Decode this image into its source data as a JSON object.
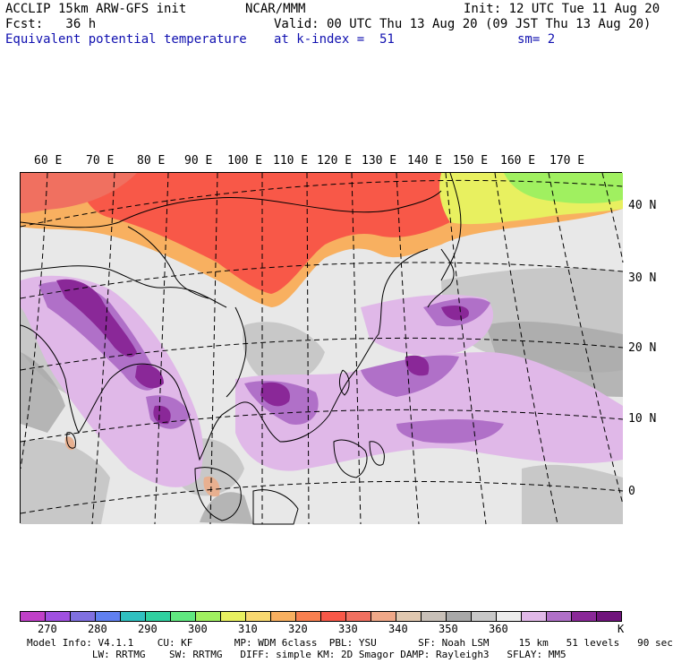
{
  "header": {
    "model": "ACCLIP 15km ARW-GFS init",
    "org": "NCAR/MMM",
    "init": "Init: 12 UTC Tue 11 Aug 20",
    "fcst": "Fcst:   36 h",
    "valid": "Valid: 00 UTC Thu 13 Aug 20 (09 JST Thu 13 Aug 20)",
    "field": "Equivalent potential temperature",
    "level": "at k-index =  51",
    "smooth": "sm= 2"
  },
  "map": {
    "lon_labels": [
      "60 E",
      "70 E",
      "80 E",
      "90 E",
      "100 E",
      "110 E",
      "120 E",
      "130 E",
      "140 E",
      "150 E",
      "160 E",
      "170 E"
    ],
    "lat_labels": [
      "40 N",
      "30 N",
      "20 N",
      "10 N",
      "0"
    ]
  },
  "colorbar": {
    "colors": [
      "#c040c8",
      "#a050e0",
      "#8070e0",
      "#6080f0",
      "#30c0c0",
      "#30d0a0",
      "#60e880",
      "#a0f060",
      "#e8f060",
      "#f8d870",
      "#f8b060",
      "#f88050",
      "#f85848",
      "#f07060",
      "#f0a888",
      "#e0c8b0",
      "#c8c0b8",
      "#a8a8a8",
      "#c8c8c8",
      "#ececec",
      "#e0b8e8",
      "#b070c8",
      "#8a2898",
      "#70147c"
    ],
    "labels": [
      "270",
      "280",
      "290",
      "300",
      "310",
      "320",
      "330",
      "340",
      "350",
      "360"
    ],
    "unit": "K"
  },
  "footer": {
    "line1": "Model Info: V4.1.1    CU: KF       MP: WDM 6class  PBL: YSU       SF: Noah LSM     15 km   51 levels   90 sec",
    "line2": "           LW: RRTMG    SW: RRTMG   DIFF: simple KM: 2D Smagor DAMP: Rayleigh3   SFLAY: MM5"
  }
}
